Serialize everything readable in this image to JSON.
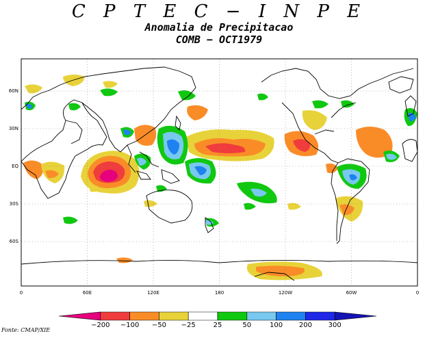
{
  "header": {
    "title": "C P T E C − I N P E",
    "subtitle": "Anomalia de Precipitacao",
    "period": "COMB − OCT1979"
  },
  "map": {
    "lat_labels": [
      "60N",
      "30N",
      "EQ",
      "30S",
      "60S"
    ],
    "lon_labels": [
      "0",
      "60E",
      "120E",
      "180",
      "120W",
      "60W",
      "0"
    ],
    "land_color": "#ffffff",
    "coastline_color": "#000000"
  },
  "legend": {
    "labels": [
      "−200",
      "−100",
      "−50",
      "−25",
      "25",
      "50",
      "100",
      "200",
      "300"
    ],
    "colors": [
      "#e6007e",
      "#f03c3c",
      "#fa8c28",
      "#e8d23a",
      "#ffffff",
      "#10c810",
      "#78c8f0",
      "#1e82f0",
      "#1e28e6",
      "#1414b4"
    ]
  },
  "source": "Fonte: CMAP/XIE"
}
